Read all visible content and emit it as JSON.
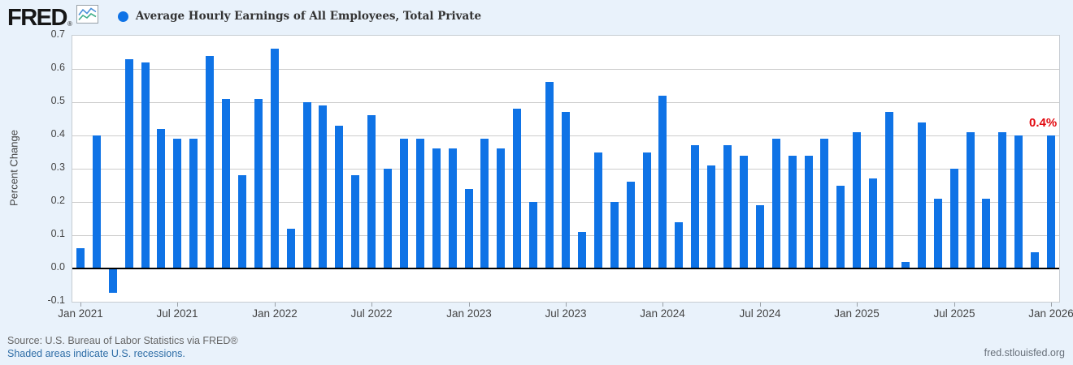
{
  "header": {
    "logo_text": "FRED",
    "registered_mark": "®"
  },
  "legend": {
    "series_label": "Average Hourly Earnings of All Employees, Total Private",
    "marker": "circle"
  },
  "chart_data": {
    "type": "bar",
    "title": "Average Hourly Earnings of All Employees, Total Private",
    "ylabel": "Percent Change",
    "ylim": [
      -0.1,
      0.7
    ],
    "yticks": [
      -0.1,
      0.0,
      0.1,
      0.2,
      0.3,
      0.4,
      0.5,
      0.6,
      0.7
    ],
    "xtick_labels": [
      "Jan 2021",
      "Jul 2021",
      "Jan 2022",
      "Jul 2022",
      "Jan 2023",
      "Jul 2023",
      "Jan 2024",
      "Jul 2024",
      "Jan 2025",
      "Jul 2025",
      "Jan 2026"
    ],
    "x": [
      "Jan 2021",
      "Feb 2021",
      "Mar 2021",
      "Apr 2021",
      "May 2021",
      "Jun 2021",
      "Jul 2021",
      "Aug 2021",
      "Sep 2021",
      "Oct 2021",
      "Nov 2021",
      "Dec 2021",
      "Jan 2022",
      "Feb 2022",
      "Mar 2022",
      "Apr 2022",
      "May 2022",
      "Jun 2022",
      "Jul 2022",
      "Aug 2022",
      "Sep 2022",
      "Oct 2022",
      "Nov 2022",
      "Dec 2022",
      "Jan 2023",
      "Feb 2023",
      "Mar 2023",
      "Apr 2023",
      "May 2023",
      "Jun 2023",
      "Jul 2023",
      "Aug 2023",
      "Sep 2023",
      "Oct 2023",
      "Nov 2023",
      "Dec 2023",
      "Jan 2024",
      "Feb 2024",
      "Mar 2024",
      "Apr 2024",
      "May 2024",
      "Jun 2024",
      "Jul 2024",
      "Aug 2024",
      "Sep 2024",
      "Oct 2024",
      "Nov 2024",
      "Dec 2024",
      "Jan 2025",
      "Feb 2025",
      "Mar 2025",
      "Apr 2025",
      "May 2025",
      "Jun 2025",
      "Jul 2025",
      "Aug 2025",
      "Sep 2025",
      "Oct 2025",
      "Nov 2025",
      "Dec 2025",
      "Jan 2026"
    ],
    "values": [
      0.06,
      0.4,
      -0.07,
      0.63,
      0.62,
      0.42,
      0.39,
      0.39,
      0.64,
      0.51,
      0.28,
      0.51,
      0.66,
      0.12,
      0.5,
      0.49,
      0.43,
      0.28,
      0.46,
      0.3,
      0.39,
      0.39,
      0.36,
      0.36,
      0.24,
      0.39,
      0.36,
      0.48,
      0.2,
      0.56,
      0.47,
      0.11,
      0.35,
      0.2,
      0.26,
      0.35,
      0.52,
      0.14,
      0.37,
      0.31,
      0.37,
      0.34,
      0.19,
      0.39,
      0.34,
      0.34,
      0.39,
      0.25,
      0.41,
      0.27,
      0.47,
      0.02,
      0.44,
      0.21,
      0.3,
      0.41,
      0.21,
      0.41,
      0.4,
      0.05,
      0.4
    ],
    "grid": "horizontal-only",
    "legend_position": "top-left",
    "annotation": {
      "text": "0.4%",
      "applies_to": "Jan 2026"
    }
  },
  "colors": {
    "bar": "#0f73e6",
    "annotation": "#e2090f",
    "background": "#e9f2fb",
    "plot_background": "#ffffff",
    "link": "#2e6da6",
    "axis_text": "#444444"
  },
  "footer": {
    "source": "Source: U.S. Bureau of Labor Statistics via FRED®",
    "recession_note": "Shaded areas indicate U.S. recessions.",
    "site_link": "fred.stlouisfed.org"
  }
}
